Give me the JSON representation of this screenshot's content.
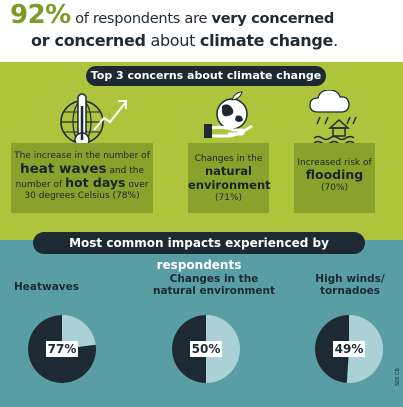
{
  "header": {
    "pct": "92%",
    "line1_rest": " of respondents are ",
    "very_concerned": "very concerned",
    "or_concerned": "or concerned",
    "about": " about ",
    "climate_change": "climate change",
    "end": "."
  },
  "concerns": {
    "title": "Top 3 concerns about climate change",
    "items": [
      {
        "pre": "The increase in the number of",
        "bold1": "heat waves",
        "mid": " and the number of ",
        "bold2": "hot days",
        "post": " over 30 degrees Celsius (78%)",
        "icon": "thermometer-globe-icon"
      },
      {
        "pre": "Changes in the",
        "bold": "natural environment",
        "post": "(71%)",
        "icon": "hand-globe-icon"
      },
      {
        "pre": "Increased risk of",
        "bold": "flooding",
        "post": "(70%)",
        "icon": "cloud-rain-house-icon"
      }
    ]
  },
  "impacts": {
    "title": "Most common impacts experienced by respondents"
  },
  "colors": {
    "green": "#adc43c",
    "green_dark": "#8aa22c",
    "teal": "#5a9ea5",
    "navy": "#1d2a33",
    "pie_light": "#a9d1d6"
  },
  "chart_data": {
    "type": "pie",
    "charts": [
      {
        "label": "Heatwaves",
        "value": 77,
        "display": "77%"
      },
      {
        "label": "Changes in the natural environment",
        "value": 50,
        "display": "50%"
      },
      {
        "label": "High winds/ tornadoes",
        "value": 49,
        "display": "49%"
      }
    ]
  },
  "credit": "SEE CB"
}
